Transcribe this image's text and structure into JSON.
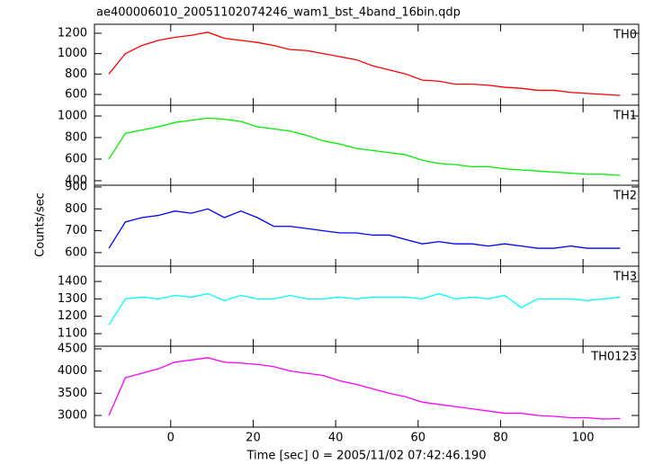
{
  "chart_data": [
    {
      "type": "line",
      "title": "ae400006010_20051102074246_wam1_bst_4band_16bin.qdp",
      "label": "TH0",
      "color": "#ff0000",
      "x": [
        -15,
        -11,
        -7,
        -3,
        1,
        5,
        9,
        13,
        17,
        21,
        25,
        29,
        33,
        37,
        41,
        45,
        49,
        53,
        57,
        61,
        65,
        69,
        73,
        77,
        81,
        85,
        89,
        93,
        97,
        101,
        105,
        109
      ],
      "values": [
        800,
        1000,
        1080,
        1130,
        1160,
        1180,
        1210,
        1150,
        1130,
        1110,
        1080,
        1040,
        1030,
        1000,
        970,
        940,
        880,
        840,
        800,
        740,
        730,
        700,
        700,
        690,
        670,
        660,
        640,
        640,
        620,
        610,
        600,
        590
      ],
      "xlim": [
        -18.5,
        113.5
      ],
      "ylim": [
        494,
        1288
      ],
      "yticks": [
        600,
        800,
        1000,
        1200
      ]
    },
    {
      "type": "line",
      "label": "TH1",
      "color": "#00ee00",
      "x": [
        -15,
        -11,
        -7,
        -3,
        1,
        5,
        9,
        13,
        17,
        21,
        25,
        29,
        33,
        37,
        41,
        45,
        49,
        53,
        57,
        61,
        65,
        69,
        73,
        77,
        81,
        85,
        89,
        93,
        97,
        101,
        105,
        109
      ],
      "values": [
        600,
        840,
        870,
        900,
        940,
        960,
        980,
        970,
        950,
        900,
        880,
        860,
        820,
        770,
        740,
        700,
        680,
        660,
        640,
        590,
        560,
        550,
        530,
        530,
        510,
        500,
        490,
        480,
        470,
        460,
        460,
        450
      ],
      "xlim": [
        -18.5,
        113.5
      ],
      "ylim": [
        358,
        1100
      ],
      "yticks": [
        400,
        600,
        800,
        1000
      ]
    },
    {
      "type": "line",
      "label": "TH2",
      "color": "#0000ff",
      "ylabel": "Counts/sec",
      "x": [
        -15,
        -11,
        -7,
        -3,
        1,
        5,
        9,
        13,
        17,
        21,
        25,
        29,
        33,
        37,
        41,
        45,
        49,
        53,
        57,
        61,
        65,
        69,
        73,
        77,
        81,
        85,
        89,
        93,
        97,
        101,
        105,
        109
      ],
      "values": [
        620,
        740,
        760,
        770,
        790,
        780,
        800,
        760,
        790,
        760,
        720,
        720,
        710,
        700,
        690,
        690,
        680,
        680,
        660,
        640,
        650,
        640,
        640,
        630,
        640,
        630,
        620,
        620,
        630,
        620,
        620,
        620
      ],
      "xlim": [
        -18.5,
        113.5
      ],
      "ylim": [
        538,
        908
      ],
      "yticks": [
        600,
        700,
        800,
        900
      ]
    },
    {
      "type": "line",
      "label": "TH3",
      "color": "#00ffff",
      "x": [
        -15,
        -11,
        -7,
        -3,
        1,
        5,
        9,
        13,
        17,
        21,
        25,
        29,
        33,
        37,
        41,
        45,
        49,
        53,
        57,
        61,
        65,
        69,
        73,
        77,
        81,
        85,
        89,
        93,
        97,
        101,
        105,
        109
      ],
      "values": [
        1150,
        1300,
        1310,
        1300,
        1320,
        1310,
        1330,
        1290,
        1320,
        1300,
        1300,
        1320,
        1300,
        1300,
        1310,
        1300,
        1310,
        1310,
        1310,
        1300,
        1330,
        1300,
        1310,
        1300,
        1320,
        1250,
        1300,
        1300,
        1300,
        1290,
        1300,
        1310
      ],
      "xlim": [
        -18.5,
        113.5
      ],
      "ylim": [
        1028,
        1488
      ],
      "yticks": [
        1100,
        1200,
        1300,
        1400
      ]
    },
    {
      "type": "line",
      "label": "TH0123",
      "color": "#ff00ff",
      "xlabel": "Time [sec] 0 = 2005/11/02 07:42:46.190",
      "x": [
        -15,
        -11,
        -7,
        -3,
        1,
        5,
        9,
        13,
        17,
        21,
        25,
        29,
        33,
        37,
        41,
        45,
        49,
        53,
        57,
        61,
        65,
        69,
        73,
        77,
        81,
        85,
        89,
        93,
        97,
        101,
        105,
        109
      ],
      "values": [
        3000,
        3850,
        3950,
        4050,
        4200,
        4250,
        4300,
        4200,
        4180,
        4150,
        4100,
        4000,
        3950,
        3900,
        3780,
        3700,
        3600,
        3500,
        3420,
        3300,
        3250,
        3200,
        3150,
        3100,
        3050,
        3050,
        3000,
        2980,
        2950,
        2950,
        2920,
        2930
      ],
      "xlim": [
        -18.5,
        113.5
      ],
      "ylim": [
        2737,
        4560
      ],
      "yticks": [
        3000,
        3500,
        4000,
        4500
      ],
      "xticks": [
        0,
        20,
        40,
        60,
        80,
        100
      ]
    }
  ]
}
